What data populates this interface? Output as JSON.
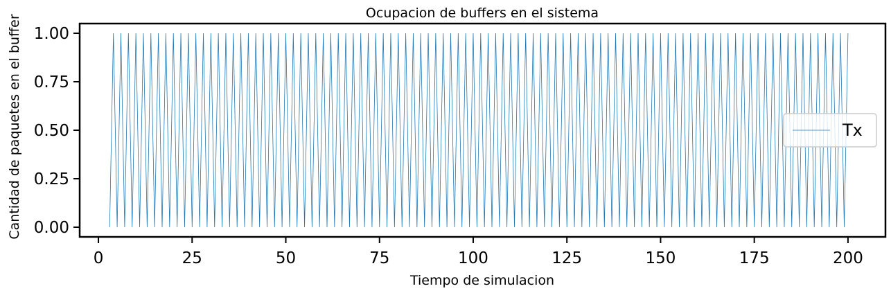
{
  "chart_data": {
    "type": "line",
    "title": "Ocupacion de buffers en el sistema",
    "xlabel": "Tiempo de simulacion",
    "ylabel": "Cantidad de paquetes en el buffer",
    "xlim": [
      -5,
      210
    ],
    "ylim": [
      -0.05,
      1.05
    ],
    "xticks": [
      0,
      25,
      50,
      75,
      100,
      125,
      150,
      175,
      200
    ],
    "xtick_labels": [
      "0",
      "25",
      "50",
      "75",
      "100",
      "125",
      "150",
      "175",
      "200"
    ],
    "yticks": [
      0.0,
      0.25,
      0.5,
      0.75,
      1.0
    ],
    "ytick_labels": [
      "0.00",
      "0.25",
      "0.50",
      "0.75",
      "1.00"
    ],
    "grid": false,
    "legend_position": "center-right",
    "series": [
      {
        "name": "Tx",
        "color": "#1f77b4",
        "pattern": "alternating 0/1 oscillation",
        "x_start": 3,
        "x_end": 200,
        "step": 1,
        "values_cycle": [
          0,
          1
        ],
        "note_first_segment": "x=3 to 4 rises from 0 to 1, then oscillates every 1 time unit"
      }
    ]
  }
}
